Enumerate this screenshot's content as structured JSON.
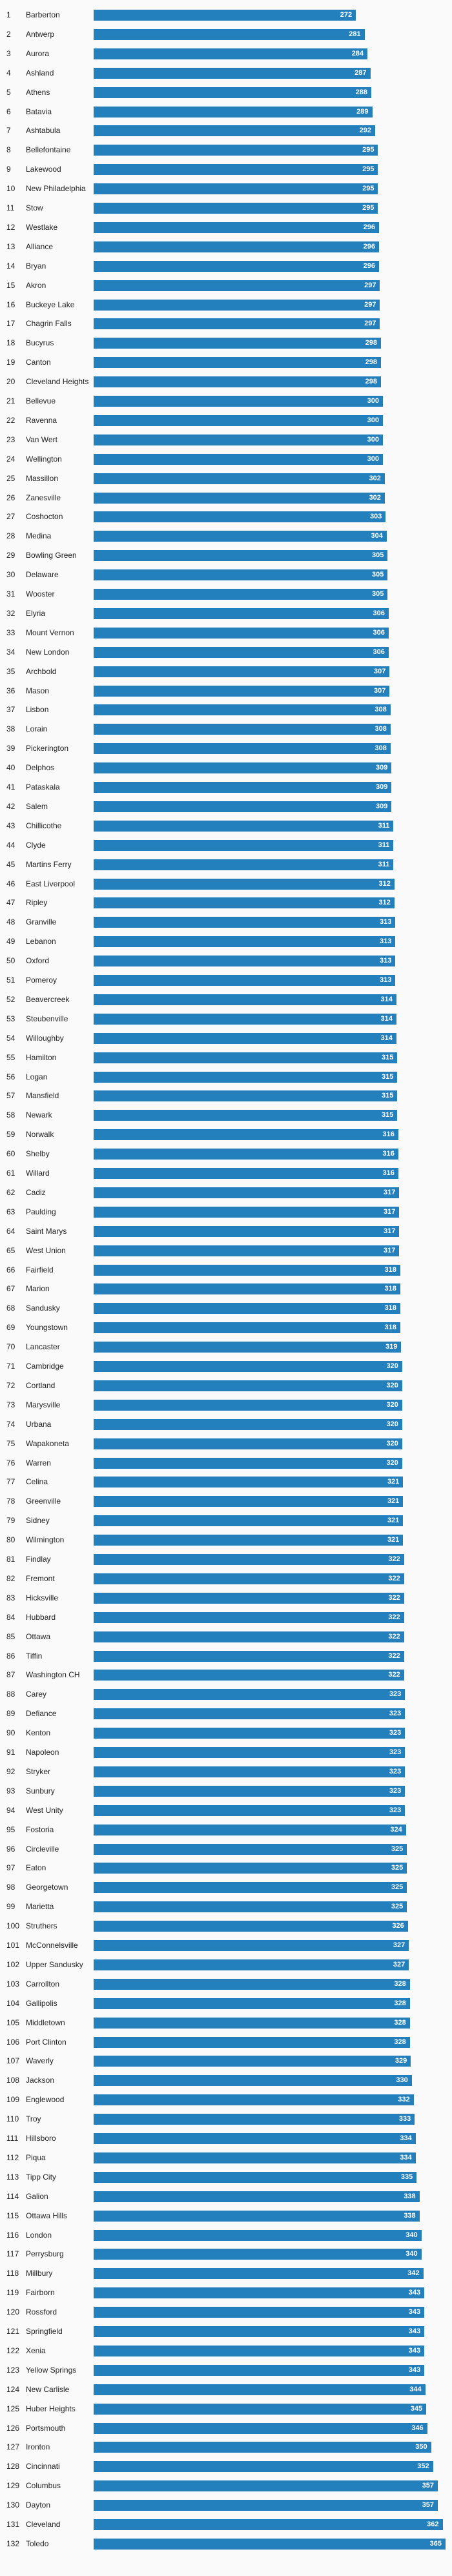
{
  "colors": {
    "bar": "#2380bd",
    "background": "#fafafa",
    "label": "#222222",
    "value_text": "#ffffff"
  },
  "chart_data": {
    "type": "bar",
    "orientation": "horizontal",
    "categories": [
      "Barberton",
      "Antwerp",
      "Aurora",
      "Ashland",
      "Athens",
      "Batavia",
      "Ashtabula",
      "Bellefontaine",
      "Lakewood",
      "New Philadelphia",
      "Stow",
      "Westlake",
      "Alliance",
      "Bryan",
      "Akron",
      "Buckeye Lake",
      "Chagrin Falls",
      "Bucyrus",
      "Canton",
      "Cleveland Heights",
      "Bellevue",
      "Ravenna",
      "Van Wert",
      "Wellington",
      "Massillon",
      "Zanesville",
      "Coshocton",
      "Medina",
      "Bowling Green",
      "Delaware",
      "Wooster",
      "Elyria",
      "Mount Vernon",
      "New London",
      "Archbold",
      "Mason",
      "Lisbon",
      "Lorain",
      "Pickerington",
      "Delphos",
      "Pataskala",
      "Salem",
      "Chillicothe",
      "Clyde",
      "Martins Ferry",
      "East Liverpool",
      "Ripley",
      "Granville",
      "Lebanon",
      "Oxford",
      "Pomeroy",
      "Beavercreek",
      "Steubenville",
      "Willoughby",
      "Hamilton",
      "Logan",
      "Mansfield",
      "Newark",
      "Norwalk",
      "Shelby",
      "Willard",
      "Cadiz",
      "Paulding",
      "Saint Marys",
      "West Union",
      "Fairfield",
      "Marion",
      "Sandusky",
      "Youngstown",
      "Lancaster",
      "Cambridge",
      "Cortland",
      "Marysville",
      "Urbana",
      "Wapakoneta",
      "Warren",
      "Celina",
      "Greenville",
      "Sidney",
      "Wilmington",
      "Findlay",
      "Fremont",
      "Hicksville",
      "Hubbard",
      "Ottawa",
      "Tiffin",
      "Washington CH",
      "Carey",
      "Defiance",
      "Kenton",
      "Napoleon",
      "Stryker",
      "Sunbury",
      "West Unity",
      "Fostoria",
      "Circleville",
      "Eaton",
      "Georgetown",
      "Marietta",
      "Struthers",
      "McConnelsville",
      "Upper Sandusky",
      "Carrollton",
      "Gallipolis",
      "Middletown",
      "Port Clinton",
      "Waverly",
      "Jackson",
      "Englewood",
      "Troy",
      "Hillsboro",
      "Piqua",
      "Tipp City",
      "Galion",
      "Ottawa Hills",
      "London",
      "Perrysburg",
      "Millbury",
      "Fairborn",
      "Rossford",
      "Springfield",
      "Xenia",
      "Yellow Springs",
      "New Carlisle",
      "Huber Heights",
      "Portsmouth",
      "Ironton",
      "Cincinnati",
      "Columbus",
      "Dayton",
      "Cleveland",
      "Toledo"
    ],
    "values": [
      272,
      281,
      284,
      287,
      288,
      289,
      292,
      295,
      295,
      295,
      295,
      296,
      296,
      296,
      297,
      297,
      297,
      298,
      298,
      298,
      300,
      300,
      300,
      300,
      302,
      302,
      303,
      304,
      305,
      305,
      305,
      306,
      306,
      306,
      307,
      307,
      308,
      308,
      308,
      309,
      309,
      309,
      311,
      311,
      311,
      312,
      312,
      313,
      313,
      313,
      313,
      314,
      314,
      314,
      315,
      315,
      315,
      315,
      316,
      316,
      316,
      317,
      317,
      317,
      317,
      318,
      318,
      318,
      318,
      319,
      320,
      320,
      320,
      320,
      320,
      320,
      321,
      321,
      321,
      321,
      322,
      322,
      322,
      322,
      322,
      322,
      322,
      323,
      323,
      323,
      323,
      323,
      323,
      323,
      324,
      325,
      325,
      325,
      325,
      326,
      327,
      327,
      328,
      328,
      328,
      328,
      329,
      330,
      332,
      333,
      334,
      334,
      335,
      338,
      338,
      340,
      340,
      342,
      343,
      343,
      343,
      343,
      343,
      344,
      345,
      346,
      350,
      352,
      357,
      357,
      362,
      365
    ],
    "xlim": [
      0,
      365
    ]
  }
}
